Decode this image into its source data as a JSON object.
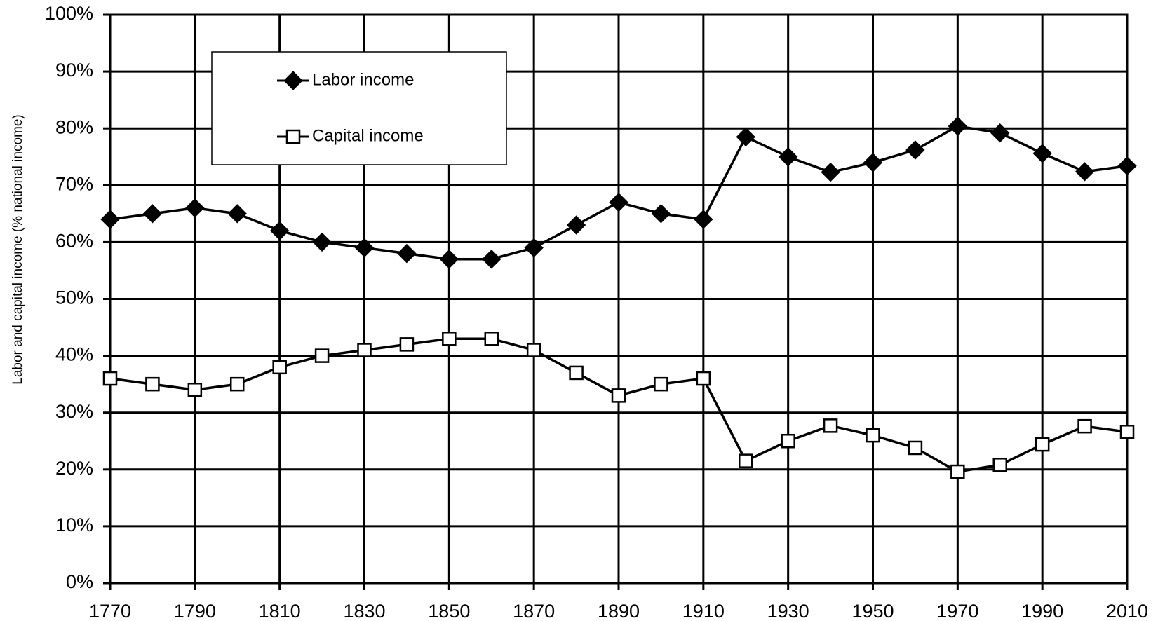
{
  "chart_data": {
    "type": "line",
    "y_label": "Labor and capital income (% national income)",
    "x": [
      1770,
      1780,
      1790,
      1800,
      1810,
      1820,
      1830,
      1840,
      1850,
      1860,
      1870,
      1880,
      1890,
      1900,
      1910,
      1920,
      1930,
      1940,
      1950,
      1960,
      1970,
      1980,
      1990,
      2000,
      2010
    ],
    "series": [
      {
        "name": "Labor income",
        "color": "#000000",
        "marker": "diamond",
        "values": [
          64,
          65,
          66,
          65,
          62,
          60,
          59,
          58,
          57,
          57,
          59,
          63,
          67,
          65,
          64,
          78.5,
          75,
          72.3,
          74,
          76.2,
          80.4,
          79.2,
          75.6,
          72.4,
          73.4
        ]
      },
      {
        "name": "Capital income",
        "color": "#000000",
        "marker": "square",
        "values": [
          36,
          35,
          34,
          35,
          38,
          40,
          41,
          42,
          43,
          43,
          41,
          37,
          33,
          35,
          36,
          21.5,
          25,
          27.7,
          26,
          23.8,
          19.6,
          20.8,
          24.4,
          27.6,
          26.6
        ]
      }
    ],
    "xlim": [
      1770,
      2010
    ],
    "xticks": [
      1770,
      1790,
      1810,
      1830,
      1850,
      1870,
      1890,
      1910,
      1930,
      1950,
      1970,
      1990,
      2010
    ],
    "ylim": [
      0,
      100
    ],
    "yticks": [
      {
        "value": 0,
        "label": "0%"
      },
      {
        "value": 10,
        "label": "10%"
      },
      {
        "value": 20,
        "label": "20%"
      },
      {
        "value": 30,
        "label": "30%"
      },
      {
        "value": 40,
        "label": "40%"
      },
      {
        "value": 50,
        "label": "50%"
      },
      {
        "value": 60,
        "label": "60%"
      },
      {
        "value": 70,
        "label": "70%"
      },
      {
        "value": 80,
        "label": "80%"
      },
      {
        "value": 90,
        "label": "90%"
      },
      {
        "value": 100,
        "label": "100%"
      }
    ],
    "grid": true,
    "legend": "upper left"
  }
}
